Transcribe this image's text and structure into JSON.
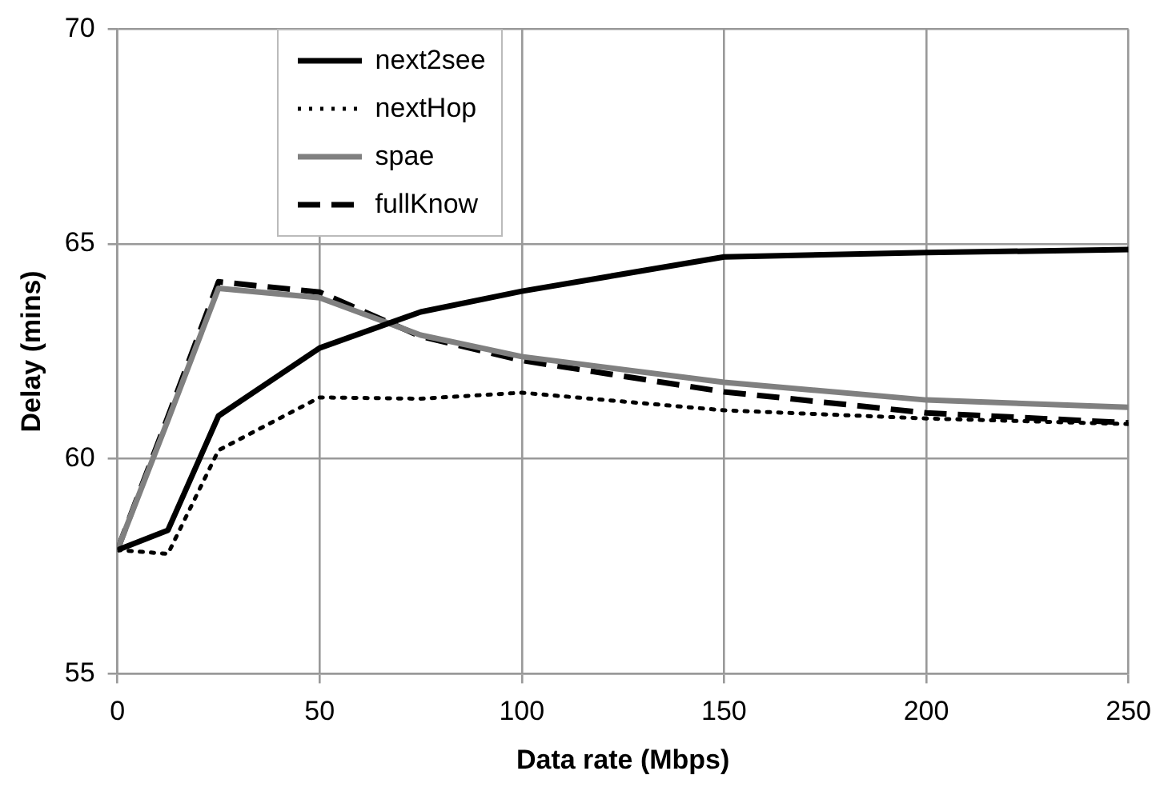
{
  "chart_data": {
    "type": "line",
    "xlabel": "Data rate (Mbps)",
    "ylabel": "Delay (mins)",
    "xlim": [
      0,
      250
    ],
    "xticks": [
      0,
      50,
      100,
      150,
      200,
      250
    ],
    "ylim": [
      55,
      70
    ],
    "yticks": [
      55,
      60,
      65,
      70
    ],
    "grid": true,
    "legend": "top left",
    "marker": "none",
    "x": [
      0,
      12.5,
      25,
      50,
      75,
      100,
      150,
      200,
      250
    ],
    "series": [
      {
        "name": "next2see",
        "color": "#000000",
        "line_style": "solid",
        "values": [
          57.88,
          58.34,
          61.0,
          62.58,
          63.42,
          63.9,
          64.7,
          64.8,
          64.87
        ]
      },
      {
        "name": "nextHop",
        "color": "#000000",
        "line_style": "dotted",
        "values": [
          57.88,
          57.79,
          60.2,
          61.43,
          61.4,
          61.54,
          61.13,
          60.94,
          60.81
        ]
      },
      {
        "name": "spae",
        "color": "#808080",
        "line_style": "solid",
        "values": [
          57.88,
          60.9,
          63.97,
          63.75,
          62.88,
          62.38,
          61.78,
          61.37,
          61.2
        ]
      },
      {
        "name": "fullKnow",
        "color": "#000000",
        "line_style": "dashed",
        "values": [
          57.88,
          60.98,
          64.12,
          63.88,
          62.85,
          62.29,
          61.56,
          61.07,
          60.84
        ]
      }
    ]
  }
}
